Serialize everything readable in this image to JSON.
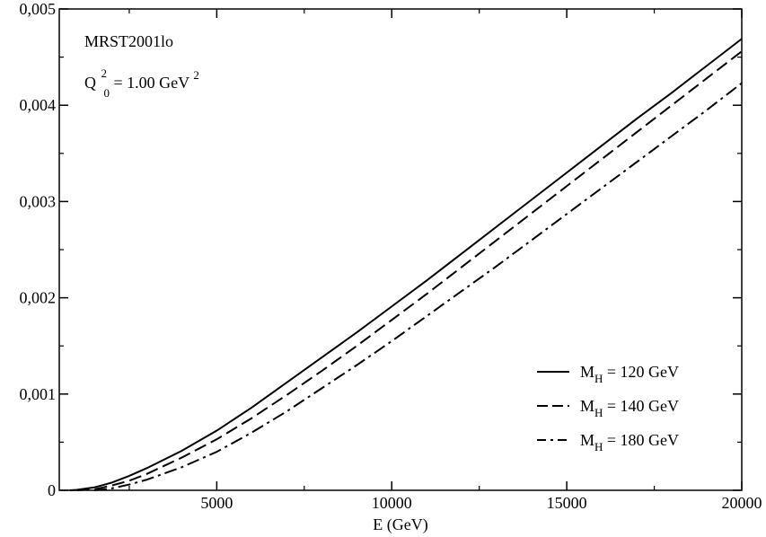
{
  "chart_data": {
    "type": "line",
    "title": "",
    "xlabel": "E (GeV)",
    "ylabel": "",
    "xlim": [
      500,
      20000
    ],
    "ylim": [
      0,
      0.005
    ],
    "x_ticks": [
      5000,
      10000,
      15000,
      20000
    ],
    "x_tick_labels": [
      "5000",
      "10000",
      "15000",
      "20000"
    ],
    "y_ticks": [
      0,
      0.001,
      0.002,
      0.003,
      0.004,
      0.005
    ],
    "y_tick_labels": [
      "0",
      "0,001",
      "0,002",
      "0,003",
      "0,004",
      "0,005"
    ],
    "grid": false,
    "legend_position": "bottom-right",
    "annotations": {
      "pdf_set": "MRST2001lo",
      "q_symbol": "Q",
      "q_sup": "2",
      "q_sub": "0",
      "q_value": " = 1.00 GeV",
      "q_unit_sup": "2"
    },
    "series": [
      {
        "name": "M_H = 120 GeV",
        "legend_main": "M",
        "legend_sub": "H",
        "legend_rest": " = 120 GeV",
        "dash": "solid",
        "x": [
          800,
          1000,
          1500,
          2000,
          2500,
          3000,
          4000,
          5000,
          6000,
          7000,
          8000,
          9000,
          10000,
          11000,
          12000,
          13000,
          14000,
          15000,
          16000,
          17000,
          18000,
          19000,
          20000
        ],
        "y": [
          0.0,
          5e-06,
          3e-05,
          8e-05,
          0.00015,
          0.00023,
          0.00041,
          0.00062,
          0.00086,
          0.00112,
          0.00138,
          0.00164,
          0.00191,
          0.00218,
          0.00246,
          0.00274,
          0.00302,
          0.0033,
          0.00358,
          0.00386,
          0.00413,
          0.00441,
          0.00469
        ]
      },
      {
        "name": "M_H = 140 GeV",
        "legend_main": "M",
        "legend_sub": "H",
        "legend_rest": " = 140 GeV",
        "dash": "dashed",
        "x": [
          1000,
          1500,
          2000,
          2500,
          3000,
          4000,
          5000,
          6000,
          7000,
          8000,
          9000,
          10000,
          11000,
          12000,
          13000,
          14000,
          15000,
          16000,
          17000,
          18000,
          19000,
          20000
        ],
        "y": [
          0.0,
          1e-05,
          5e-05,
          0.0001,
          0.00017,
          0.00034,
          0.00053,
          0.00075,
          0.00099,
          0.00124,
          0.0015,
          0.00177,
          0.00204,
          0.00232,
          0.0026,
          0.00288,
          0.00316,
          0.00344,
          0.00372,
          0.004,
          0.00428,
          0.00456
        ]
      },
      {
        "name": "M_H = 180 GeV",
        "legend_main": "M",
        "legend_sub": "H",
        "legend_rest": " = 180 GeV",
        "dash": "dashdot",
        "x": [
          1500,
          2000,
          2500,
          3000,
          4000,
          5000,
          6000,
          7000,
          8000,
          9000,
          10000,
          11000,
          12000,
          13000,
          14000,
          15000,
          16000,
          17000,
          18000,
          19000,
          20000
        ],
        "y": [
          0.0,
          2e-05,
          6e-05,
          0.00011,
          0.00024,
          0.0004,
          0.0006,
          0.00082,
          0.00106,
          0.0013,
          0.00155,
          0.00181,
          0.00207,
          0.00233,
          0.0026,
          0.00287,
          0.00314,
          0.00341,
          0.00368,
          0.00395,
          0.00423
        ]
      }
    ]
  }
}
